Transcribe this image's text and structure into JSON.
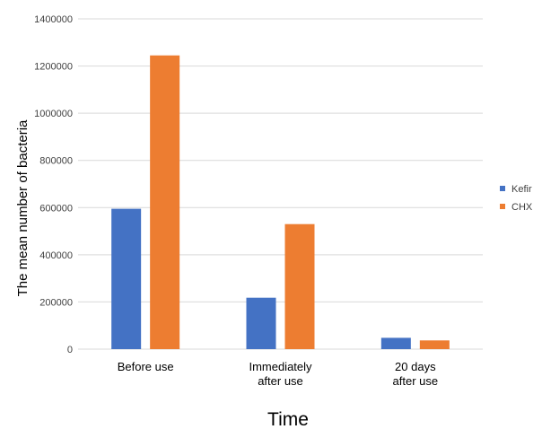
{
  "chart_data": {
    "type": "bar",
    "title": "",
    "xlabel": "Time",
    "ylabel": "The mean number of bacteria",
    "categories": [
      [
        "Before use"
      ],
      [
        "Immediately",
        "after use"
      ],
      [
        "20 days",
        "after use"
      ]
    ],
    "series": [
      {
        "name": "Kefir",
        "color": "#4472c4",
        "values": [
          595000,
          218000,
          48000
        ]
      },
      {
        "name": "CHX",
        "color": "#ed7d31",
        "values": [
          1245000,
          530000,
          37000
        ]
      }
    ],
    "ylim": [
      0,
      1400000
    ],
    "yticks": [
      0,
      200000,
      400000,
      600000,
      800000,
      1000000,
      1200000,
      1400000
    ],
    "grid": true,
    "legend_position": "right"
  }
}
